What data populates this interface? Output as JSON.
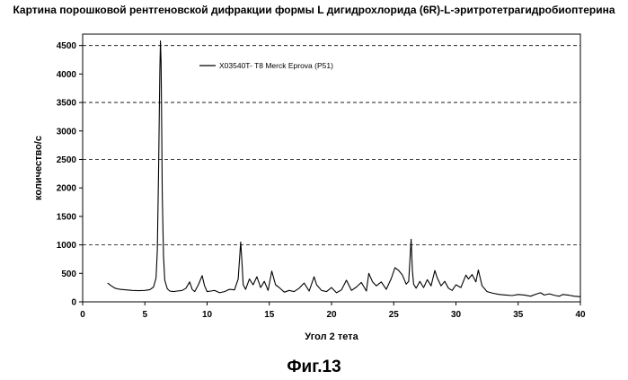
{
  "figure": {
    "caption": "Фиг.13"
  },
  "chart_data": {
    "type": "line",
    "title": "Картина порошковой рентгеновской дифракции формы L дигидрохлорида (6R)-L-эритротетрагидробиоптерина",
    "xlabel": "Угол 2 тета",
    "ylabel": "количество/с",
    "xlim": [
      0,
      40
    ],
    "ylim": [
      0,
      4700
    ],
    "x_ticks": [
      0,
      5,
      10,
      15,
      20,
      25,
      30,
      35,
      40
    ],
    "y_ticks": [
      0,
      500,
      1000,
      1500,
      2000,
      2500,
      3000,
      3500,
      4000,
      4500
    ],
    "grid": "horizontal dashed at 1000, 2500, 3500, 4500",
    "legend_position": "top-left",
    "colors": {
      "line": "#000000",
      "grid": "#000000",
      "background": "#ffffff"
    },
    "series": [
      {
        "name": "X03540T- T8 Merck Eprova (P51)",
        "x": [
          2.0,
          2.3,
          2.6,
          3.0,
          3.5,
          4.0,
          4.5,
          5.0,
          5.4,
          5.7,
          5.9,
          6.0,
          6.1,
          6.2,
          6.25,
          6.3,
          6.35,
          6.4,
          6.5,
          6.6,
          6.8,
          7.0,
          7.3,
          7.6,
          8.0,
          8.3,
          8.6,
          8.8,
          9.0,
          9.3,
          9.6,
          9.8,
          10.0,
          10.3,
          10.6,
          11.0,
          11.4,
          11.8,
          12.2,
          12.5,
          12.7,
          12.8,
          12.9,
          13.1,
          13.4,
          13.7,
          14.0,
          14.3,
          14.6,
          14.9,
          15.2,
          15.5,
          15.8,
          16.2,
          16.6,
          17.0,
          17.4,
          17.8,
          18.2,
          18.6,
          18.8,
          19.2,
          19.6,
          20.0,
          20.4,
          20.8,
          21.2,
          21.6,
          22.0,
          22.4,
          22.8,
          23.0,
          23.3,
          23.6,
          24.0,
          24.4,
          24.8,
          25.1,
          25.4,
          25.7,
          26.0,
          26.2,
          26.4,
          26.5,
          26.6,
          26.8,
          27.1,
          27.4,
          27.7,
          28.0,
          28.3,
          28.5,
          28.8,
          29.1,
          29.4,
          29.7,
          30.0,
          30.4,
          30.8,
          31.0,
          31.3,
          31.6,
          31.8,
          32.1,
          32.5,
          33.0,
          33.5,
          34.0,
          34.5,
          35.0,
          35.5,
          36.0,
          36.5,
          36.8,
          37.1,
          37.5,
          38.0,
          38.3,
          38.6,
          39.0,
          39.5,
          40.0
        ],
        "y": [
          330,
          280,
          240,
          220,
          210,
          200,
          195,
          200,
          215,
          260,
          420,
          900,
          2300,
          4050,
          4580,
          4200,
          3200,
          1900,
          800,
          380,
          230,
          190,
          180,
          190,
          200,
          240,
          350,
          220,
          180,
          300,
          460,
          280,
          180,
          190,
          200,
          160,
          180,
          220,
          210,
          400,
          1050,
          700,
          300,
          220,
          400,
          300,
          440,
          250,
          360,
          200,
          540,
          300,
          250,
          170,
          200,
          180,
          240,
          330,
          190,
          440,
          300,
          200,
          180,
          250,
          160,
          210,
          380,
          200,
          260,
          340,
          190,
          500,
          350,
          280,
          350,
          220,
          410,
          600,
          550,
          470,
          310,
          360,
          1100,
          550,
          310,
          240,
          360,
          250,
          390,
          280,
          550,
          420,
          280,
          360,
          240,
          200,
          300,
          250,
          470,
          400,
          480,
          350,
          560,
          280,
          180,
          150,
          130,
          120,
          110,
          130,
          120,
          100,
          140,
          160,
          120,
          140,
          110,
          100,
          130,
          120,
          100,
          90
        ]
      }
    ]
  }
}
